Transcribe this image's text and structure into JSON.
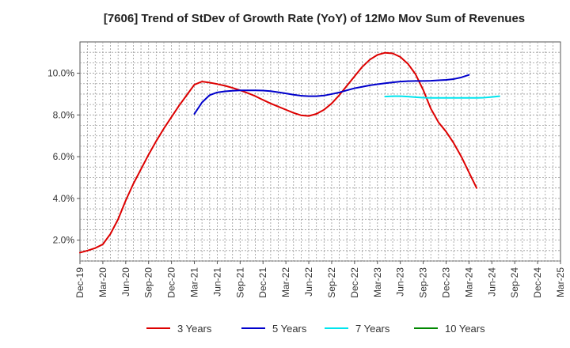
{
  "chart_data": {
    "type": "line",
    "title": "[7606]  Trend of StDev of Growth Rate (YoY) of 12Mo Mov Sum of Revenues",
    "xlabel": "",
    "ylabel": "",
    "x_ticks": [
      "Dec-19",
      "Mar-20",
      "Jun-20",
      "Sep-20",
      "Dec-20",
      "Mar-21",
      "Jun-21",
      "Sep-21",
      "Dec-21",
      "Mar-22",
      "Jun-22",
      "Sep-22",
      "Dec-22",
      "Mar-23",
      "Jun-23",
      "Sep-23",
      "Dec-23",
      "Mar-24",
      "Jun-24",
      "Sep-24",
      "Dec-24",
      "Mar-25"
    ],
    "y_ticks": [
      2.0,
      4.0,
      6.0,
      8.0,
      10.0
    ],
    "y_tick_labels": [
      "2.0%",
      "4.0%",
      "6.0%",
      "8.0%",
      "10.0%"
    ],
    "ylim": [
      1.0,
      11.5
    ],
    "x_start": "Dec-19",
    "x_end": "Mar-25",
    "grid": true,
    "legend_position": "bottom",
    "series": [
      {
        "name": "3 Years",
        "color": "#dd0000",
        "start": 0,
        "values": [
          1.4,
          1.5,
          1.62,
          1.8,
          2.3,
          3.0,
          3.9,
          4.7,
          5.4,
          6.1,
          6.75,
          7.35,
          7.9,
          8.45,
          8.95,
          9.45,
          9.6,
          9.55,
          9.48,
          9.4,
          9.3,
          9.18,
          9.05,
          8.9,
          8.72,
          8.55,
          8.4,
          8.25,
          8.1,
          7.98,
          7.95,
          8.05,
          8.25,
          8.55,
          8.95,
          9.4,
          9.85,
          10.3,
          10.65,
          10.88,
          10.98,
          10.95,
          10.78,
          10.45,
          9.95,
          9.2,
          8.3,
          7.65,
          7.2,
          6.65,
          6.0,
          5.25,
          4.5
        ]
      },
      {
        "name": "5 Years",
        "color": "#0000cc",
        "start": 15,
        "values": [
          8.05,
          8.6,
          8.95,
          9.08,
          9.13,
          9.16,
          9.18,
          9.18,
          9.18,
          9.17,
          9.14,
          9.09,
          9.03,
          8.97,
          8.92,
          8.9,
          8.9,
          8.93,
          9.0,
          9.08,
          9.18,
          9.28,
          9.35,
          9.42,
          9.47,
          9.52,
          9.56,
          9.6,
          9.62,
          9.63,
          9.63,
          9.64,
          9.66,
          9.68,
          9.72,
          9.8,
          9.92
        ]
      },
      {
        "name": "7 Years",
        "color": "#00e5ee",
        "start": 40,
        "values": [
          8.88,
          8.9,
          8.9,
          8.88,
          8.85,
          8.83,
          8.82,
          8.82,
          8.82,
          8.82,
          8.82,
          8.82,
          8.82,
          8.83,
          8.86,
          8.9
        ]
      },
      {
        "name": "10 Years",
        "color": "#008800",
        "start": 0,
        "values": []
      }
    ]
  }
}
